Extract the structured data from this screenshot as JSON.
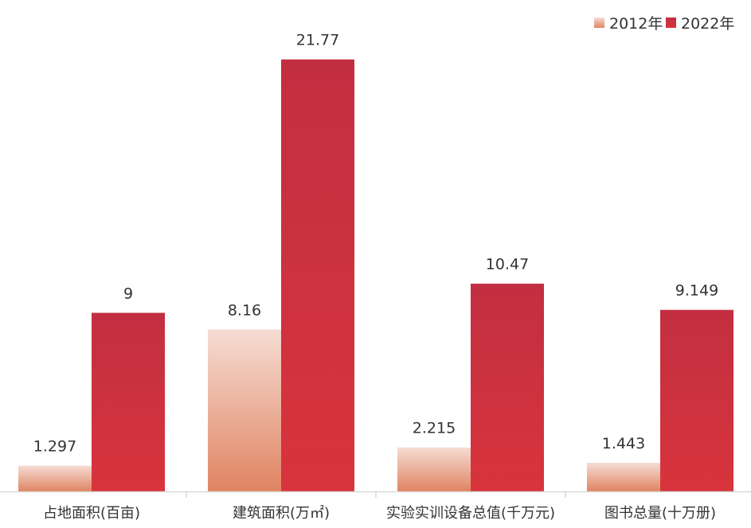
{
  "chart_data": {
    "type": "bar",
    "title": "",
    "xlabel": "",
    "ylabel": "",
    "ylim": [
      0,
      22
    ],
    "grid": false,
    "legend_position": "top-right",
    "categories": [
      "占地面积(百亩)",
      "建筑面积(万㎡)",
      "实验实训设备总值(千万元)",
      "图书总量(十万册)"
    ],
    "series": [
      {
        "name": "2012年",
        "values": [
          1.297,
          8.16,
          2.215,
          1.443
        ],
        "labels": [
          "1.297",
          "8.16",
          "2.215",
          "1.443"
        ],
        "color_top": "#f6dcd3",
        "color_bottom": "#e08462"
      },
      {
        "name": "2022年",
        "values": [
          9,
          21.77,
          10.47,
          9.149
        ],
        "labels": [
          "9",
          "21.77",
          "10.47",
          "9.149"
        ],
        "color_top": "#c22f40",
        "color_bottom": "#d8343d"
      }
    ]
  }
}
